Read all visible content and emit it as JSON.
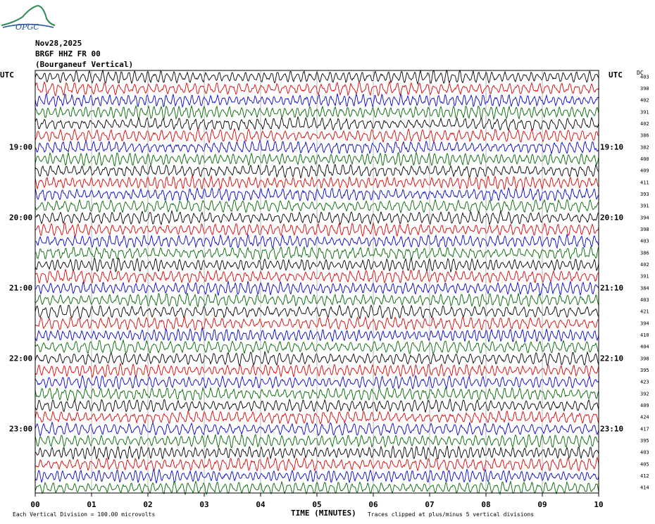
{
  "logo": {
    "text": "OPGC",
    "icon": "ovpf-volcano-logo-icon"
  },
  "header": {
    "date": "Nov28,2025",
    "station": "BRGF HHZ FR 00",
    "location": "(Bourganeuf Vertical)"
  },
  "left_axis_label": "UTC",
  "right_axis_label": "UTC",
  "dc_label": "DC",
  "chart_data": {
    "type": "line",
    "title": "",
    "xlabel": "TIME (MINUTES)",
    "ylabel": "",
    "xlim": [
      0,
      10
    ],
    "x_ticks": [
      "00",
      "01",
      "02",
      "03",
      "04",
      "05",
      "06",
      "07",
      "08",
      "09",
      "10"
    ],
    "left_time_labels": [
      "19:00",
      "20:00",
      "21:00",
      "22:00",
      "23:00"
    ],
    "right_time_labels": [
      "19:10",
      "20:10",
      "21:10",
      "22:10",
      "23:10"
    ],
    "trace_colors": [
      "#000000",
      "#dd0000",
      "#0000cc",
      "#006600"
    ],
    "dc_offsets": [
      403,
      390,
      402,
      391,
      402,
      386,
      382,
      400,
      409,
      411,
      393,
      391,
      394,
      398,
      403,
      386,
      402,
      391,
      384,
      403,
      421,
      394,
      410,
      404,
      398,
      395,
      423,
      392,
      409,
      424,
      417,
      395,
      403,
      405,
      412,
      414
    ],
    "grid": true
  },
  "footer": {
    "scale_note": "Each Vertical Division = 100.00 microvolts",
    "clip_note": "Traces clipped at plus/minus 5 vertical divisions"
  }
}
